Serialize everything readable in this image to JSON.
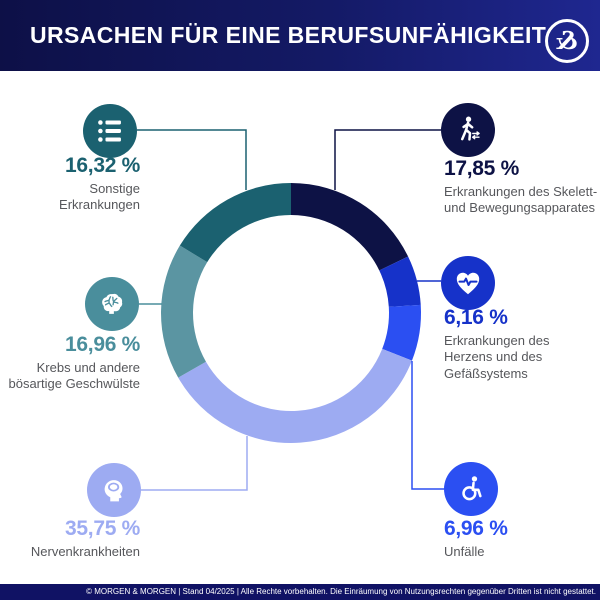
{
  "header": {
    "title": "URSACHEN FÜR EINE BERUFSUNFÄHIGKEIT",
    "logo_glyph": "&"
  },
  "chart_data": {
    "type": "pie",
    "subtype": "donut",
    "title": "Ursachen für eine Berufsunfähigkeit",
    "unit": "%",
    "start_angle_deg": 0,
    "direction": "clockwise",
    "segments": [
      {
        "key": "skelett",
        "label": "Erkrankungen des Skelett-\nund Bewegungsapparates",
        "value": 17.85,
        "value_text": "17,85 %",
        "color": "#0d1245",
        "icon_color": "#0d1245",
        "icon": "walking-person-icon"
      },
      {
        "key": "herz",
        "label": "Erkrankungen des\nHerzens und des\nGefäßsystems",
        "value": 6.16,
        "value_text": "6,16 %",
        "color": "#1632c9",
        "icon_color": "#1632c9",
        "icon": "heart-pulse-icon"
      },
      {
        "key": "unfaelle",
        "label": "Unfälle",
        "value": 6.96,
        "value_text": "6,96 %",
        "color": "#2b4ff2",
        "icon_color": "#2b4ff2",
        "icon": "wheelchair-icon"
      },
      {
        "key": "nerven",
        "label": "Nervenkrankheiten",
        "value": 35.75,
        "value_text": "35,75 %",
        "color": "#9dabf2",
        "icon_color": "#9dabf2",
        "icon": "head-silhouette-icon"
      },
      {
        "key": "krebs",
        "label": "Krebs und andere\nbösartige Geschwülste",
        "value": 16.96,
        "value_text": "16,96 %",
        "color": "#5b95a2",
        "icon_color": "#4a8e9c",
        "icon": "brain-icon"
      },
      {
        "key": "sonstige",
        "label": "Sonstige\nErkrankungen",
        "value": 16.32,
        "value_text": "16,32 %",
        "color": "#1b6170",
        "icon_color": "#1b6170",
        "icon": "list-icon"
      }
    ]
  },
  "footer": {
    "text": "© MORGEN & MORGEN | Stand 04/2025 | Alle Rechte vorbehalten. Die Einräumung von Nutzungsrechten gegenüber Dritten ist nicht gestattet."
  }
}
